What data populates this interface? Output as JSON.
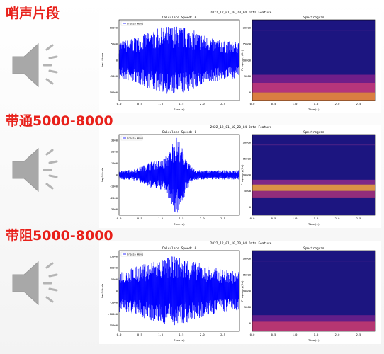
{
  "sections": [
    {
      "heading": "哨声片段",
      "wave": {
        "suptitle": "2022_12_01_10_20_04 Data Feature",
        "title": "Calculate Speed: 0",
        "legend": "Origin Wave",
        "xlabel": "Time(s)",
        "ylabel": "Amplitude",
        "xticks": [
          "0.0",
          "0.5",
          "1.0",
          "1.5",
          "2.0",
          "2.5"
        ],
        "yticks": [
          "10000",
          "5000",
          "0",
          "-5000",
          "-10000"
        ]
      },
      "spectrogram": {
        "title": "Spectrogram",
        "xlabel": "Time(s)",
        "ylabel": "Frequency(Hz)",
        "xticks": [
          "0.0",
          "0.5",
          "1.0",
          "1.5",
          "2.0",
          "2.5"
        ],
        "yticks": [
          "20000",
          "15000",
          "10000",
          "5000",
          "0"
        ]
      }
    },
    {
      "heading": "带通5000-8000",
      "wave": {
        "suptitle": "2022_12_01_10_20_04 Data Feature",
        "title": "Calculate Speed: 0",
        "legend": "Origin Wave",
        "xlabel": "Time(s)",
        "ylabel": "Amplitude",
        "xticks": [
          "0.0",
          "0.5",
          "1.0",
          "1.5",
          "2.0",
          "2.5"
        ],
        "yticks": [
          "3000",
          "2000",
          "1000",
          "0",
          "-1000",
          "-2000",
          "-3000"
        ]
      },
      "spectrogram": {
        "title": "Spectrogram",
        "xlabel": "Time(s)",
        "ylabel": "Frequency(Hz)",
        "xticks": [
          "0.0",
          "0.5",
          "1.0",
          "1.5",
          "2.0",
          "2.5"
        ],
        "yticks": [
          "20000",
          "15000",
          "10000",
          "5000",
          "0"
        ]
      }
    },
    {
      "heading": "带阻5000-8000",
      "wave": {
        "suptitle": "2022_12_01_10_20_04 Data Feature",
        "title": "Calculate Speed: 0",
        "legend": "Origin Wave",
        "xlabel": "Time(s)",
        "ylabel": "Amplitude",
        "xticks": [
          "0.0",
          "0.5",
          "1.0",
          "1.5",
          "2.0",
          "2.5"
        ],
        "yticks": [
          "15000",
          "10000",
          "5000",
          "0",
          "-5000",
          "-10000",
          "-15000"
        ]
      },
      "spectrogram": {
        "title": "Spectrogram",
        "xlabel": "Time(s)",
        "ylabel": "Frequency(Hz)",
        "xticks": [
          "0.0",
          "0.5",
          "1.0",
          "1.5",
          "2.0",
          "2.5"
        ],
        "yticks": [
          "20000",
          "15000",
          "10000",
          "5000",
          "0"
        ]
      }
    }
  ]
}
